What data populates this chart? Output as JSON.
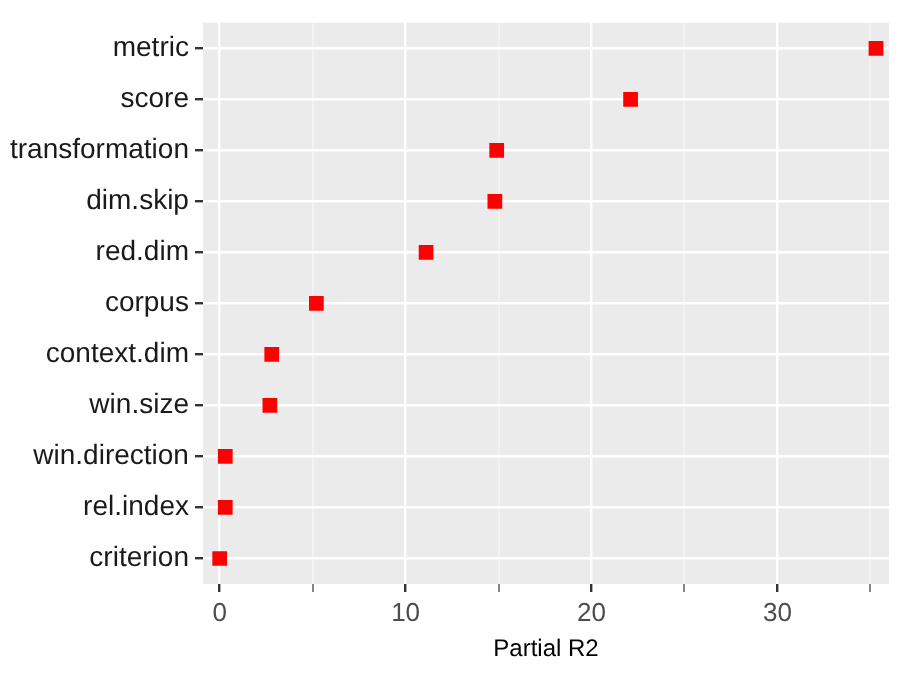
{
  "chart_data": {
    "type": "scatter",
    "orientation": "horizontal",
    "xlabel": "Partial R2",
    "categories": [
      "metric",
      "score",
      "transformation",
      "dim.skip",
      "red.dim",
      "corpus",
      "context.dim",
      "win.size",
      "win.direction",
      "rel.index",
      "criterion"
    ],
    "values": [
      35.3,
      22.1,
      14.9,
      14.8,
      11.1,
      5.2,
      2.8,
      2.7,
      0.3,
      0.3,
      0.0
    ],
    "color": "#ff0000",
    "marker": "square",
    "xlim": [
      -0.9,
      36
    ],
    "xticks": [
      0,
      {
        "value": 5,
        "label": null
      },
      10,
      {
        "value": 15,
        "label": null
      },
      20,
      {
        "value": 25,
        "label": null
      },
      30,
      {
        "value": 35,
        "label": null
      }
    ],
    "grid": true,
    "legend": false
  }
}
